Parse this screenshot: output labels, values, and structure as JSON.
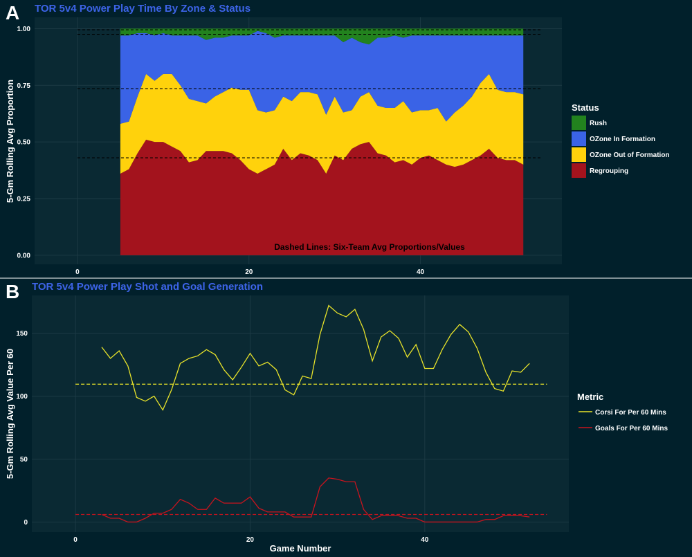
{
  "panel_a": {
    "letter": "A",
    "title": "TOR  5v4 Power Play Time By Zone & Status",
    "ylabel": "5-Gm Rolling Avg Proportion",
    "annotation": "Dashed Lines: Six-Team Avg Proportions/Values",
    "legend_title": "Status",
    "legend": [
      {
        "label": "Rush",
        "color": "#22821e"
      },
      {
        "label": "OZone In Formation",
        "color": "#3a63e6"
      },
      {
        "label": "OZone Out of Formation",
        "color": "#ffd20c"
      },
      {
        "label": "Regrouping",
        "color": "#a3131d"
      }
    ]
  },
  "panel_b": {
    "letter": "B",
    "title": "TOR  5v4 Power Play Shot and Goal Generation",
    "ylabel": "5-Gm Rolling Avg Value Per 60",
    "xlabel": "Game Number",
    "legend_title": "Metric",
    "legend": [
      {
        "label": "Corsi For Per 60 Mins",
        "color": "#e8e32a"
      },
      {
        "label": "Goals For Per 60 Mins",
        "color": "#c8141e"
      }
    ]
  },
  "chart_data": [
    {
      "type": "area",
      "stacked": true,
      "title": "TOR  5v4 Power Play Time By Zone & Status",
      "xlabel": "",
      "ylabel": "5-Gm Rolling Avg Proportion",
      "xlim": [
        -5,
        56.5
      ],
      "ylim": [
        -0.04,
        1.05
      ],
      "xticks": [
        0,
        20,
        40
      ],
      "yticks": [
        0,
        0.25,
        0.5,
        0.75,
        1.0
      ],
      "ytick_labels": [
        "0.00",
        "0.25",
        "0.50",
        "0.75",
        "1.00"
      ],
      "x": [
        5,
        6,
        7,
        8,
        9,
        10,
        11,
        12,
        13,
        14,
        15,
        16,
        17,
        18,
        19,
        20,
        21,
        22,
        23,
        24,
        25,
        26,
        27,
        28,
        29,
        30,
        31,
        32,
        33,
        34,
        35,
        36,
        37,
        38,
        39,
        40,
        41,
        42,
        43,
        44,
        45,
        46,
        47,
        48,
        49,
        50,
        51,
        52
      ],
      "series": [
        {
          "name": "Regrouping",
          "color": "#a3131d",
          "values": [
            0.36,
            0.38,
            0.45,
            0.51,
            0.5,
            0.5,
            0.48,
            0.46,
            0.41,
            0.42,
            0.46,
            0.46,
            0.46,
            0.45,
            0.42,
            0.38,
            0.36,
            0.38,
            0.4,
            0.47,
            0.42,
            0.45,
            0.44,
            0.42,
            0.36,
            0.44,
            0.42,
            0.47,
            0.49,
            0.5,
            0.45,
            0.44,
            0.41,
            0.42,
            0.4,
            0.43,
            0.44,
            0.42,
            0.4,
            0.39,
            0.4,
            0.42,
            0.44,
            0.47,
            0.43,
            0.42,
            0.42,
            0.4
          ]
        },
        {
          "name": "OZone Out of Formation",
          "color": "#ffd20c",
          "values": [
            0.22,
            0.21,
            0.25,
            0.29,
            0.27,
            0.3,
            0.32,
            0.29,
            0.28,
            0.26,
            0.21,
            0.24,
            0.26,
            0.29,
            0.31,
            0.35,
            0.28,
            0.25,
            0.24,
            0.23,
            0.26,
            0.27,
            0.28,
            0.29,
            0.26,
            0.26,
            0.21,
            0.17,
            0.21,
            0.22,
            0.21,
            0.21,
            0.24,
            0.26,
            0.23,
            0.21,
            0.2,
            0.23,
            0.19,
            0.24,
            0.26,
            0.28,
            0.32,
            0.33,
            0.3,
            0.3,
            0.3,
            0.31
          ]
        },
        {
          "name": "OZone In Formation",
          "color": "#3a63e6",
          "values": [
            0.39,
            0.38,
            0.28,
            0.18,
            0.2,
            0.18,
            0.17,
            0.22,
            0.28,
            0.29,
            0.28,
            0.26,
            0.24,
            0.23,
            0.24,
            0.24,
            0.35,
            0.35,
            0.32,
            0.27,
            0.29,
            0.25,
            0.25,
            0.26,
            0.35,
            0.27,
            0.31,
            0.32,
            0.24,
            0.21,
            0.3,
            0.31,
            0.32,
            0.28,
            0.34,
            0.33,
            0.33,
            0.32,
            0.38,
            0.34,
            0.31,
            0.27,
            0.21,
            0.17,
            0.24,
            0.25,
            0.25,
            0.26
          ]
        },
        {
          "name": "Rush",
          "color": "#22821e",
          "values": [
            0.03,
            0.03,
            0.02,
            0.02,
            0.03,
            0.02,
            0.03,
            0.03,
            0.03,
            0.03,
            0.05,
            0.04,
            0.04,
            0.03,
            0.03,
            0.03,
            0.01,
            0.02,
            0.04,
            0.03,
            0.03,
            0.03,
            0.03,
            0.03,
            0.03,
            0.03,
            0.06,
            0.04,
            0.06,
            0.07,
            0.04,
            0.04,
            0.03,
            0.04,
            0.03,
            0.03,
            0.03,
            0.03,
            0.03,
            0.03,
            0.03,
            0.03,
            0.03,
            0.03,
            0.03,
            0.03,
            0.03,
            0.03
          ]
        }
      ],
      "reference_lines": [
        0.43,
        0.735,
        0.975,
        0.995
      ],
      "annotation": "Dashed Lines: Six-Team Avg Proportions/Values",
      "legend_title": "Status",
      "legend_position": "right"
    },
    {
      "type": "line",
      "title": "TOR  5v4 Power Play Shot and Goal Generation",
      "xlabel": "Game Number",
      "ylabel": "5-Gm Rolling Avg Value Per 60",
      "xlim": [
        -5,
        56.5
      ],
      "ylim": [
        -8,
        180
      ],
      "xticks": [
        0,
        20,
        40
      ],
      "yticks": [
        0,
        50,
        100,
        150
      ],
      "x": [
        3,
        4,
        5,
        6,
        7,
        8,
        9,
        10,
        11,
        12,
        13,
        14,
        15,
        16,
        17,
        18,
        19,
        20,
        21,
        22,
        23,
        24,
        25,
        26,
        27,
        28,
        29,
        30,
        31,
        32,
        33,
        34,
        35,
        36,
        37,
        38,
        39,
        40,
        41,
        42,
        43,
        44,
        45,
        46,
        47,
        48,
        49,
        50,
        51,
        52
      ],
      "series": [
        {
          "name": "Corsi For Per 60 Mins",
          "color": "#e8e32a",
          "values": [
            139,
            130,
            136,
            124,
            99,
            96,
            100,
            89,
            105,
            126,
            130,
            132,
            137,
            133,
            121,
            113,
            123,
            134,
            124,
            127,
            121,
            105,
            101,
            116,
            114,
            149,
            172,
            166,
            163,
            169,
            153,
            128,
            147,
            152,
            146,
            131,
            141,
            122,
            122,
            137,
            149,
            157,
            151,
            138,
            119,
            106,
            104,
            120,
            119,
            126
          ],
          "reference": 109.5
        },
        {
          "name": "Goals For Per 60 Mins",
          "color": "#c8141e",
          "values": [
            6,
            3,
            3,
            0,
            0,
            3,
            7,
            7,
            10,
            18,
            15,
            10,
            10,
            19,
            15,
            15,
            15,
            20,
            11,
            8,
            8,
            8,
            4,
            4,
            4,
            28,
            35,
            34,
            32,
            32,
            10,
            2,
            5,
            5,
            5,
            3,
            3,
            0,
            0,
            0,
            0,
            0,
            0,
            0,
            2,
            2,
            5,
            5,
            5,
            4
          ],
          "reference": 6
        }
      ],
      "legend_title": "Metric",
      "legend_position": "right"
    }
  ]
}
